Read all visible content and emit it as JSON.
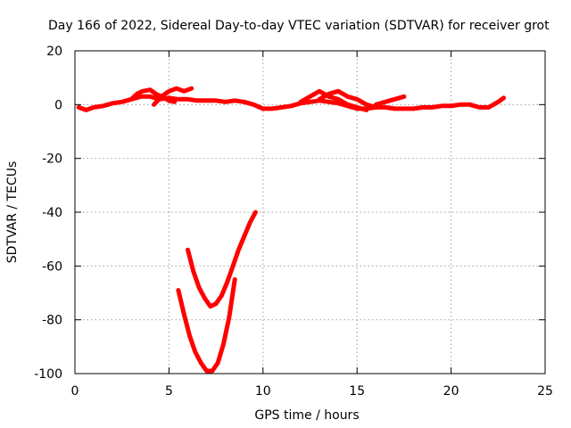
{
  "chart_data": {
    "type": "line",
    "title": "Day 166 of 2022, Sidereal Day-to-day VTEC variation (SDTVAR) for receiver grot",
    "xlabel": "GPS time / hours",
    "ylabel": "SDTVAR / TECUs",
    "xlim": [
      0,
      25
    ],
    "ylim": [
      -100,
      20
    ],
    "xticks": [
      0,
      5,
      10,
      15,
      20,
      25
    ],
    "yticks": [
      -100,
      -80,
      -60,
      -40,
      -20,
      0,
      20
    ],
    "grid": true,
    "series_color": "#ff0000",
    "series": [
      {
        "x": [
          0.2,
          0.6,
          1.0,
          1.5,
          2.0,
          2.5,
          3.0,
          3.5,
          4.0,
          4.5,
          5.0,
          5.5,
          6.0,
          6.5,
          7.0,
          7.5,
          8.0,
          8.5,
          9.0,
          9.5,
          10.0,
          10.5,
          11.0,
          11.5,
          12.0,
          12.5,
          13.0,
          13.5,
          14.0,
          14.5,
          15.0,
          15.5,
          16.0,
          16.5,
          17.0,
          17.5,
          18.0,
          18.5,
          19.0,
          19.5,
          20.0,
          20.5,
          21.0,
          21.5,
          22.0,
          22.5,
          22.8
        ],
        "y": [
          -1,
          -2,
          -1,
          -0.5,
          0.5,
          1,
          2,
          3,
          3,
          2,
          2.5,
          2,
          2,
          1.5,
          1.5,
          1.5,
          1,
          1.5,
          1,
          0,
          -1.5,
          -1.5,
          -1,
          -0.5,
          0.5,
          1,
          1.5,
          1,
          0.5,
          -0.5,
          -1.5,
          -1.5,
          -1,
          -1,
          -1.5,
          -1.5,
          -1.5,
          -1,
          -1,
          -0.5,
          -0.5,
          0,
          0,
          -1,
          -1,
          1,
          2.5
        ]
      },
      {
        "x": [
          3.0,
          3.3,
          3.6,
          4.0,
          4.3,
          4.6,
          5.0,
          5.3
        ],
        "y": [
          2,
          4,
          5,
          5.5,
          4,
          3,
          1.5,
          1
        ]
      },
      {
        "x": [
          4.2,
          4.6,
          5.0,
          5.4,
          5.8,
          6.2
        ],
        "y": [
          0,
          3,
          5,
          6,
          5,
          6
        ]
      },
      {
        "x": [
          12.0,
          12.5,
          13.0,
          13.5,
          14.0,
          14.5,
          15.0,
          15.5
        ],
        "y": [
          1,
          3,
          5,
          3,
          2,
          0,
          -1,
          -2
        ]
      },
      {
        "x": [
          13.0,
          13.5,
          14.0,
          14.5,
          15.0,
          15.5,
          16.0
        ],
        "y": [
          2,
          4,
          5,
          3,
          2,
          0,
          -1
        ]
      },
      {
        "x": [
          16.0,
          16.5,
          17.0,
          17.5
        ],
        "y": [
          0,
          1,
          2,
          3
        ]
      },
      {
        "x": [
          5.5,
          5.8,
          6.1,
          6.4,
          6.7,
          7.0,
          7.3,
          7.6,
          7.9,
          8.2,
          8.5
        ],
        "y": [
          -69,
          -78,
          -86,
          -92,
          -96,
          -99,
          -99,
          -96,
          -89,
          -79,
          -65
        ]
      },
      {
        "x": [
          6.0,
          6.3,
          6.6,
          6.9,
          7.2,
          7.5,
          7.8,
          8.1,
          8.4,
          8.7,
          9.0,
          9.3,
          9.6
        ],
        "y": [
          -54,
          -62,
          -68,
          -72,
          -75,
          -74,
          -71,
          -66,
          -60,
          -54,
          -49,
          -44,
          -40
        ]
      }
    ]
  }
}
